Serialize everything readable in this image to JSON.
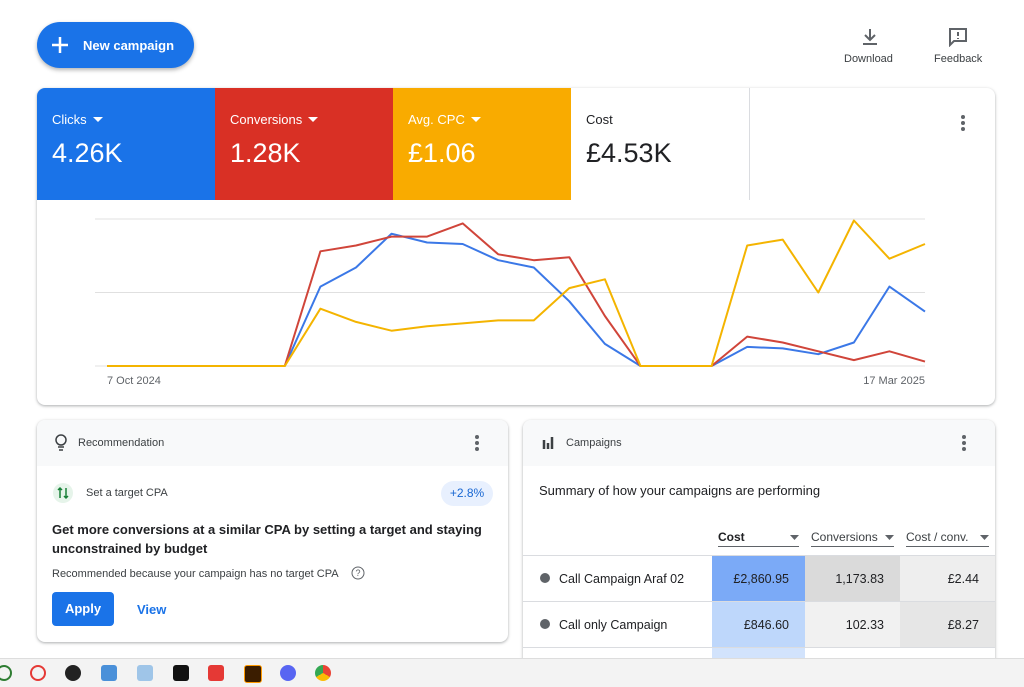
{
  "toolbar": {
    "new_campaign": "New campaign",
    "download": "Download",
    "feedback": "Feedback"
  },
  "scorecards": [
    {
      "label": "Clicks",
      "value": "4.26K",
      "color": "#1a73e8"
    },
    {
      "label": "Conversions",
      "value": "1.28K",
      "color": "#d93025"
    },
    {
      "label": "Avg. CPC",
      "value": "£1.06",
      "color": "#f9ab00"
    },
    {
      "label": "Cost",
      "value": "£4.53K",
      "color": "#ffffff"
    }
  ],
  "chart_data": {
    "type": "line",
    "categories": [
      "7 Oct 2024",
      null,
      null,
      null,
      null,
      null,
      null,
      null,
      null,
      null,
      null,
      null,
      null,
      null,
      null,
      null,
      null,
      null,
      null,
      null,
      null,
      null,
      null,
      "17 Mar 2025"
    ],
    "series": [
      {
        "color": "#3b78e7",
        "values": [
          0,
          0,
          0,
          0,
          0,
          0,
          54,
          67,
          90,
          84,
          83,
          72,
          67,
          44,
          15,
          0,
          0,
          0,
          13,
          12,
          8,
          16,
          54,
          37
        ]
      },
      {
        "color": "#d0453a",
        "values": [
          0,
          0,
          0,
          0,
          0,
          0,
          78,
          82,
          88,
          88,
          97,
          76,
          72,
          74,
          34,
          0,
          0,
          0,
          20,
          16,
          10,
          4,
          10,
          3
        ]
      },
      {
        "color": "#f4b400",
        "values": [
          0,
          0,
          0,
          0,
          0,
          0,
          39,
          30,
          24,
          27,
          29,
          31,
          31,
          53,
          59,
          0,
          0,
          0,
          82,
          86,
          50,
          99,
          73,
          83
        ]
      }
    ],
    "ylim": [
      0,
      100
    ],
    "yticks": [
      0,
      50,
      100
    ],
    "grid": true
  },
  "recommendation": {
    "header": "Recommendation",
    "item": "Set a target CPA",
    "badge": "+2.8%",
    "headline": "Get more conversions at a similar CPA by setting a target and staying unconstrained by budget",
    "reason": "Recommended because your campaign has no target CPA",
    "apply": "Apply",
    "view": "View"
  },
  "campaigns": {
    "header": "Campaigns",
    "summary": "Summary of how your campaigns are performing",
    "table": {
      "columns": [
        "Cost",
        "Conversions",
        "Cost / conv."
      ],
      "rows": [
        [
          "Call Campaign Araf 02",
          "£2,860.95",
          "1,173.83",
          "£2.44"
        ],
        [
          "Call only Campaign",
          "£846.60",
          "102.33",
          "£8.27"
        ]
      ]
    }
  }
}
